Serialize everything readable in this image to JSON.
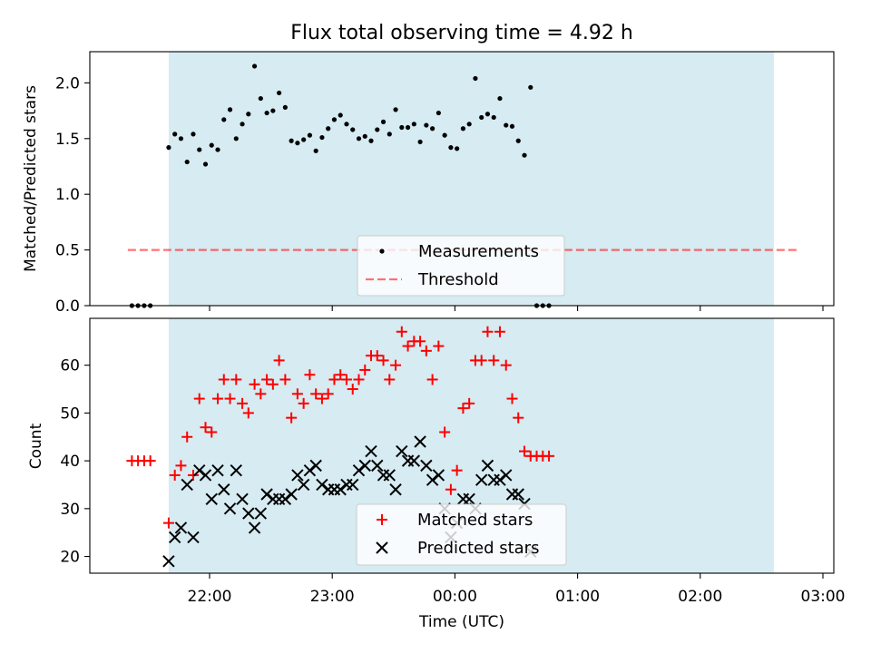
{
  "title": "Flux total observing time = 4.92 h",
  "xlabel": "Time (UTC)",
  "x_tick_labels": [
    "22:00",
    "23:00",
    "00:00",
    "01:00",
    "02:00",
    "03:00"
  ],
  "colors": {
    "shade": "#add8e6",
    "measurement": "#000000",
    "threshold": "#ff0000",
    "matched": "#ff0000",
    "predicted": "#000000"
  },
  "chart_data": [
    {
      "type": "scatter",
      "ylabel": "Matched/Predicted stars",
      "ylim": [
        0,
        2.28
      ],
      "y_tick_labels": [
        "0.0",
        "0.5",
        "1.0",
        "1.5",
        "2.0"
      ],
      "y_ticks": [
        0,
        0.5,
        1.0,
        1.5,
        2.0
      ],
      "grid": false,
      "legend_position": "lower center",
      "shaded_span": {
        "start": "21:40",
        "end": "02:36"
      },
      "threshold": {
        "name": "Threshold",
        "value": 0.5,
        "from": "21:20",
        "to": "02:48"
      },
      "series": [
        {
          "name": "Measurements",
          "marker": "dot",
          "points": [
            [
              "21:22",
              0
            ],
            [
              "21:25",
              0
            ],
            [
              "21:28",
              0
            ],
            [
              "21:31",
              0
            ],
            [
              "21:40",
              1.42
            ],
            [
              "21:43",
              1.54
            ],
            [
              "21:46",
              1.5
            ],
            [
              "21:49",
              1.29
            ],
            [
              "21:52",
              1.54
            ],
            [
              "21:55",
              1.4
            ],
            [
              "21:58",
              1.27
            ],
            [
              "22:01",
              1.44
            ],
            [
              "22:04",
              1.4
            ],
            [
              "22:07",
              1.67
            ],
            [
              "22:10",
              1.76
            ],
            [
              "22:13",
              1.5
            ],
            [
              "22:16",
              1.63
            ],
            [
              "22:19",
              1.72
            ],
            [
              "22:22",
              2.15
            ],
            [
              "22:25",
              1.86
            ],
            [
              "22:28",
              1.73
            ],
            [
              "22:31",
              1.75
            ],
            [
              "22:34",
              1.91
            ],
            [
              "22:37",
              1.78
            ],
            [
              "22:40",
              1.48
            ],
            [
              "22:43",
              1.46
            ],
            [
              "22:46",
              1.49
            ],
            [
              "22:49",
              1.53
            ],
            [
              "22:52",
              1.39
            ],
            [
              "22:55",
              1.51
            ],
            [
              "22:58",
              1.59
            ],
            [
              "23:01",
              1.67
            ],
            [
              "23:04",
              1.71
            ],
            [
              "23:07",
              1.63
            ],
            [
              "23:10",
              1.58
            ],
            [
              "23:13",
              1.5
            ],
            [
              "23:16",
              1.52
            ],
            [
              "23:19",
              1.48
            ],
            [
              "23:22",
              1.58
            ],
            [
              "23:25",
              1.65
            ],
            [
              "23:28",
              1.54
            ],
            [
              "23:31",
              1.76
            ],
            [
              "23:34",
              1.6
            ],
            [
              "23:37",
              1.6
            ],
            [
              "23:40",
              1.63
            ],
            [
              "23:43",
              1.47
            ],
            [
              "23:46",
              1.62
            ],
            [
              "23:49",
              1.59
            ],
            [
              "23:52",
              1.73
            ],
            [
              "23:55",
              1.53
            ],
            [
              "23:58",
              1.42
            ],
            [
              "00:01",
              1.41
            ],
            [
              "00:04",
              1.59
            ],
            [
              "00:07",
              1.63
            ],
            [
              "00:10",
              2.04
            ],
            [
              "00:13",
              1.69
            ],
            [
              "00:16",
              1.72
            ],
            [
              "00:19",
              1.69
            ],
            [
              "00:22",
              1.86
            ],
            [
              "00:25",
              1.62
            ],
            [
              "00:28",
              1.61
            ],
            [
              "00:31",
              1.48
            ],
            [
              "00:34",
              1.35
            ],
            [
              "00:37",
              1.96
            ],
            [
              "00:40",
              0
            ],
            [
              "00:43",
              0
            ],
            [
              "00:46",
              0
            ]
          ]
        }
      ]
    },
    {
      "type": "scatter",
      "ylabel": "Count",
      "ylim": [
        16.5,
        69.8
      ],
      "y_tick_labels": [
        "20",
        "30",
        "40",
        "50",
        "60"
      ],
      "y_ticks": [
        20,
        30,
        40,
        50,
        60
      ],
      "grid": false,
      "legend_position": "lower center",
      "shaded_span": {
        "start": "21:40",
        "end": "02:36"
      },
      "series": [
        {
          "name": "Matched stars",
          "marker": "plus",
          "points": [
            [
              "21:22",
              40
            ],
            [
              "21:25",
              40
            ],
            [
              "21:28",
              40
            ],
            [
              "21:31",
              40
            ],
            [
              "21:40",
              27
            ],
            [
              "21:43",
              37
            ],
            [
              "21:46",
              39
            ],
            [
              "21:49",
              45
            ],
            [
              "21:52",
              37
            ],
            [
              "21:55",
              53
            ],
            [
              "21:58",
              47
            ],
            [
              "22:01",
              46
            ],
            [
              "22:04",
              53
            ],
            [
              "22:07",
              57
            ],
            [
              "22:10",
              53
            ],
            [
              "22:13",
              57
            ],
            [
              "22:16",
              52
            ],
            [
              "22:19",
              50
            ],
            [
              "22:22",
              56
            ],
            [
              "22:25",
              54
            ],
            [
              "22:28",
              57
            ],
            [
              "22:31",
              56
            ],
            [
              "22:34",
              61
            ],
            [
              "22:37",
              57
            ],
            [
              "22:40",
              49
            ],
            [
              "22:43",
              54
            ],
            [
              "22:46",
              52
            ],
            [
              "22:49",
              58
            ],
            [
              "22:52",
              54
            ],
            [
              "22:55",
              53
            ],
            [
              "22:58",
              54
            ],
            [
              "23:01",
              57
            ],
            [
              "23:04",
              58
            ],
            [
              "23:07",
              57
            ],
            [
              "23:10",
              55
            ],
            [
              "23:13",
              57
            ],
            [
              "23:16",
              59
            ],
            [
              "23:19",
              62
            ],
            [
              "23:22",
              62
            ],
            [
              "23:25",
              61
            ],
            [
              "23:28",
              57
            ],
            [
              "23:31",
              60
            ],
            [
              "23:34",
              67
            ],
            [
              "23:37",
              64
            ],
            [
              "23:40",
              65
            ],
            [
              "23:43",
              65
            ],
            [
              "23:46",
              63
            ],
            [
              "23:49",
              57
            ],
            [
              "23:52",
              64
            ],
            [
              "23:55",
              46
            ],
            [
              "23:58",
              34
            ],
            [
              "00:01",
              38
            ],
            [
              "00:04",
              51
            ],
            [
              "00:07",
              52
            ],
            [
              "00:10",
              61
            ],
            [
              "00:13",
              61
            ],
            [
              "00:16",
              67
            ],
            [
              "00:19",
              61
            ],
            [
              "00:22",
              67
            ],
            [
              "00:25",
              60
            ],
            [
              "00:28",
              53
            ],
            [
              "00:31",
              49
            ],
            [
              "00:34",
              42
            ],
            [
              "00:37",
              41
            ],
            [
              "00:40",
              41
            ],
            [
              "00:43",
              41
            ],
            [
              "00:46",
              41
            ]
          ]
        },
        {
          "name": "Predicted stars",
          "marker": "x",
          "points": [
            [
              "21:40",
              19
            ],
            [
              "21:43",
              24
            ],
            [
              "21:46",
              26
            ],
            [
              "21:49",
              35
            ],
            [
              "21:52",
              24
            ],
            [
              "21:55",
              38
            ],
            [
              "21:58",
              37
            ],
            [
              "22:01",
              32
            ],
            [
              "22:04",
              38
            ],
            [
              "22:07",
              34
            ],
            [
              "22:10",
              30
            ],
            [
              "22:13",
              38
            ],
            [
              "22:16",
              32
            ],
            [
              "22:19",
              29
            ],
            [
              "22:22",
              26
            ],
            [
              "22:25",
              29
            ],
            [
              "22:28",
              33
            ],
            [
              "22:31",
              32
            ],
            [
              "22:34",
              32
            ],
            [
              "22:37",
              32
            ],
            [
              "22:40",
              33
            ],
            [
              "22:43",
              37
            ],
            [
              "22:46",
              35
            ],
            [
              "22:49",
              38
            ],
            [
              "22:52",
              39
            ],
            [
              "22:55",
              35
            ],
            [
              "22:58",
              34
            ],
            [
              "23:01",
              34
            ],
            [
              "23:04",
              34
            ],
            [
              "23:07",
              35
            ],
            [
              "23:10",
              35
            ],
            [
              "23:13",
              38
            ],
            [
              "23:16",
              39
            ],
            [
              "23:19",
              42
            ],
            [
              "23:22",
              39
            ],
            [
              "23:25",
              37
            ],
            [
              "23:28",
              37
            ],
            [
              "23:31",
              34
            ],
            [
              "23:34",
              42
            ],
            [
              "23:37",
              40
            ],
            [
              "23:40",
              40
            ],
            [
              "23:43",
              44
            ],
            [
              "23:46",
              39
            ],
            [
              "23:49",
              36
            ],
            [
              "23:52",
              37
            ],
            [
              "23:55",
              30
            ],
            [
              "23:58",
              24
            ],
            [
              "00:01",
              27
            ],
            [
              "00:04",
              32
            ],
            [
              "00:07",
              32
            ],
            [
              "00:10",
              30
            ],
            [
              "00:13",
              36
            ],
            [
              "00:16",
              39
            ],
            [
              "00:19",
              36
            ],
            [
              "00:22",
              36
            ],
            [
              "00:25",
              37
            ],
            [
              "00:28",
              33
            ],
            [
              "00:31",
              33
            ],
            [
              "00:34",
              31
            ],
            [
              "00:37",
              21
            ]
          ]
        }
      ]
    }
  ]
}
